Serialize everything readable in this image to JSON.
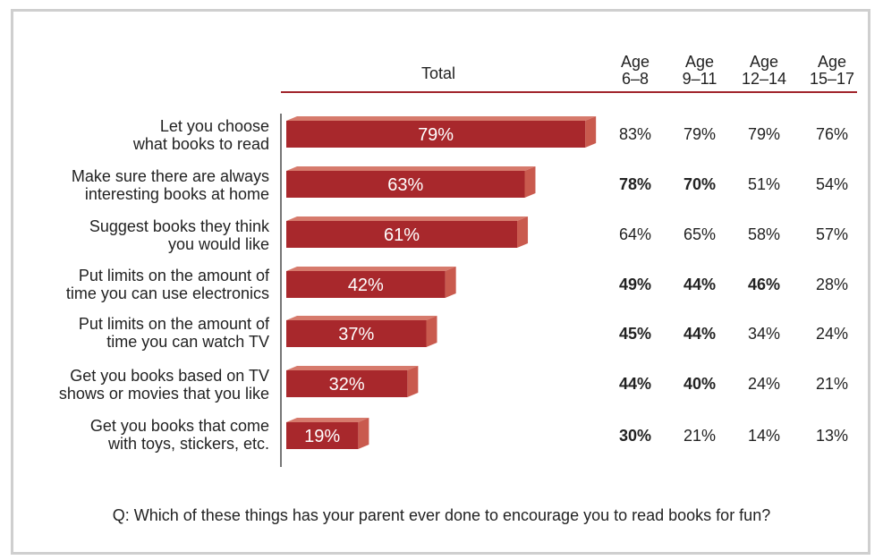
{
  "chart_data": {
    "type": "bar",
    "title": "",
    "column_headers": {
      "total": "Total",
      "age_groups": [
        {
          "line1": "Age",
          "line2": "6–8"
        },
        {
          "line1": "Age",
          "line2": "9–11"
        },
        {
          "line1": "Age",
          "line2": "12–14"
        },
        {
          "line1": "Age",
          "line2": "15–17"
        }
      ]
    },
    "categories": [
      [
        "Let you choose",
        "what books to read"
      ],
      [
        "Make sure there are always",
        "interesting books at home"
      ],
      [
        "Suggest books they think",
        "you would like"
      ],
      [
        "Put limits on the amount of",
        "time you can use electronics"
      ],
      [
        "Put limits on the amount of",
        "time you can watch TV"
      ],
      [
        "Get you books based on TV",
        "shows or movies that you like"
      ],
      [
        "Get you books that come",
        "with toys, stickers, etc."
      ]
    ],
    "series": [
      {
        "name": "Total",
        "values": [
          79,
          63,
          61,
          42,
          37,
          32,
          19
        ]
      },
      {
        "name": "Age 6–8",
        "values": [
          83,
          78,
          64,
          49,
          45,
          44,
          30
        ]
      },
      {
        "name": "Age 9–11",
        "values": [
          79,
          70,
          65,
          44,
          44,
          40,
          21
        ]
      },
      {
        "name": "Age 12–14",
        "values": [
          79,
          51,
          58,
          46,
          34,
          24,
          14
        ]
      },
      {
        "name": "Age 15–17",
        "values": [
          76,
          54,
          57,
          28,
          24,
          21,
          13
        ]
      }
    ],
    "bold": [
      [
        false,
        false,
        false,
        false
      ],
      [
        true,
        true,
        false,
        false
      ],
      [
        false,
        false,
        false,
        false
      ],
      [
        true,
        true,
        true,
        false
      ],
      [
        true,
        true,
        false,
        false
      ],
      [
        true,
        true,
        false,
        false
      ],
      [
        true,
        false,
        false,
        false
      ]
    ],
    "value_suffix": "%",
    "xlim": [
      0,
      100
    ],
    "bar_color": "#a8282c",
    "bar_side_color": "#c95a4e",
    "bar_top_color": "#d67a6c",
    "rule_color": "#a1242b"
  },
  "question": "Q: Which of these things has your parent ever done to encourage you to read books for fun?"
}
